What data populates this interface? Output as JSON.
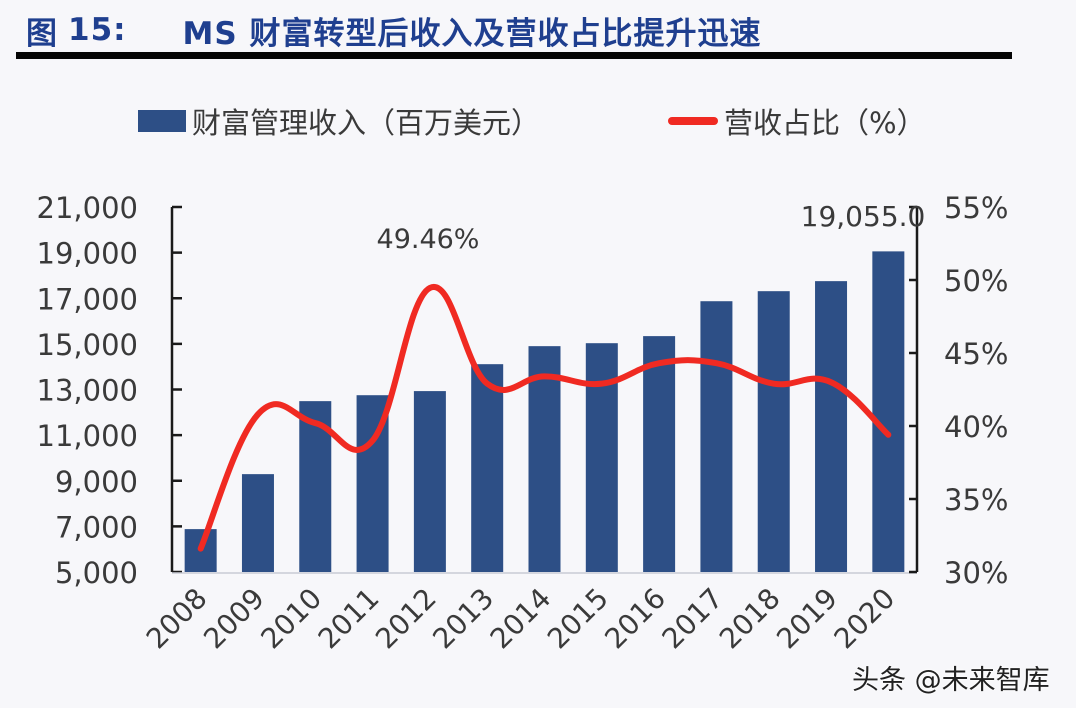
{
  "title": {
    "prefix": "图",
    "number": "15:",
    "text": "MS 财富转型后收入及营收占比提升迅速"
  },
  "legend": {
    "bar_label": "财富管理收入（百万美元）",
    "line_label": "营收占比（%）"
  },
  "annotations": {
    "peak_label": "49.46%",
    "last_bar_label": "19,055.0"
  },
  "watermark": "头条 @未来智库",
  "colors": {
    "bar": "#2d4f86",
    "line": "#f02a22",
    "title": "#1f3f8f",
    "axis": "#1a1a1a",
    "text": "#3a3a3a"
  },
  "chart_data": {
    "type": "bar+line",
    "title": "图 15: MS 财富转型后收入及营收占比提升迅速",
    "categories": [
      "2008",
      "2009",
      "2010",
      "2011",
      "2012",
      "2013",
      "2014",
      "2015",
      "2016",
      "2017",
      "2018",
      "2019",
      "2020"
    ],
    "series": [
      {
        "name": "财富管理收入（百万美元）",
        "type": "bar",
        "axis": "left",
        "values": [
          6880,
          9290,
          12490,
          12750,
          12930,
          14110,
          14900,
          15030,
          15340,
          16870,
          17310,
          17750,
          19055
        ]
      },
      {
        "name": "营收占比（%）",
        "type": "line",
        "axis": "right",
        "values": [
          31.6,
          40.8,
          40.2,
          39.0,
          49.46,
          42.9,
          43.4,
          42.9,
          44.3,
          44.3,
          42.9,
          43.0,
          39.4
        ]
      }
    ],
    "left_axis": {
      "ylim": [
        5000,
        21000
      ],
      "ticks": [
        "5,000",
        "7,000",
        "9,000",
        "11,000",
        "13,000",
        "15,000",
        "17,000",
        "19,000",
        "21,000"
      ]
    },
    "right_axis": {
      "ylim": [
        30,
        55
      ],
      "ticks": [
        "30%",
        "35%",
        "40%",
        "45%",
        "50%",
        "55%"
      ]
    },
    "xlabel": "",
    "ylabel": "",
    "grid": false,
    "legend_position": "top",
    "data_labels": [
      {
        "series": "营收占比（%）",
        "category": "2012",
        "text": "49.46%"
      },
      {
        "series": "财富管理收入（百万美元）",
        "category": "2020",
        "text": "19,055.0"
      }
    ]
  }
}
